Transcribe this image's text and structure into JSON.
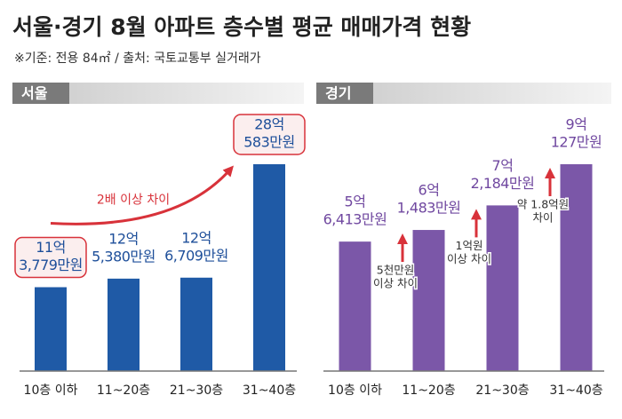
{
  "title": "서울·경기 8월 아파트 층수별 평균 매매가격 현황",
  "subtitle": "※기준: 전용 84㎡ / 출처: 국토교통부 실거래가",
  "chart_data": [
    {
      "type": "bar",
      "title": "서울",
      "categories": [
        "10층 이하",
        "11~20층",
        "21~30층",
        "31~40층"
      ],
      "values": [
        113779,
        125380,
        126709,
        280583
      ],
      "value_labels": [
        [
          "11억",
          "3,779만원"
        ],
        [
          "12억",
          "5,380만원"
        ],
        [
          "12억",
          "6,709만원"
        ],
        [
          "28억",
          "583만원"
        ]
      ],
      "color": "#1f5aa6",
      "label_color": "#1e4f9a",
      "boxed_labels": true,
      "annotations": [
        [
          "2배 이상 차이"
        ]
      ]
    },
    {
      "type": "bar",
      "title": "경기",
      "categories": [
        "10층 이하",
        "11~20층",
        "21~30층",
        "31~40층"
      ],
      "values": [
        56413,
        61483,
        72184,
        90127
      ],
      "value_labels": [
        [
          "5억",
          "6,413만원"
        ],
        [
          "6억",
          "1,483만원"
        ],
        [
          "7억",
          "2,184만원"
        ],
        [
          "9억",
          "127만원"
        ]
      ],
      "color": "#7b57a8",
      "label_color": "#7048a0",
      "boxed_labels": false,
      "annotations": [
        [
          "5천만원",
          "이상 차이"
        ],
        [
          "1억원",
          "이상 차이"
        ],
        [
          "약 1.8억원",
          "차이"
        ]
      ]
    }
  ]
}
